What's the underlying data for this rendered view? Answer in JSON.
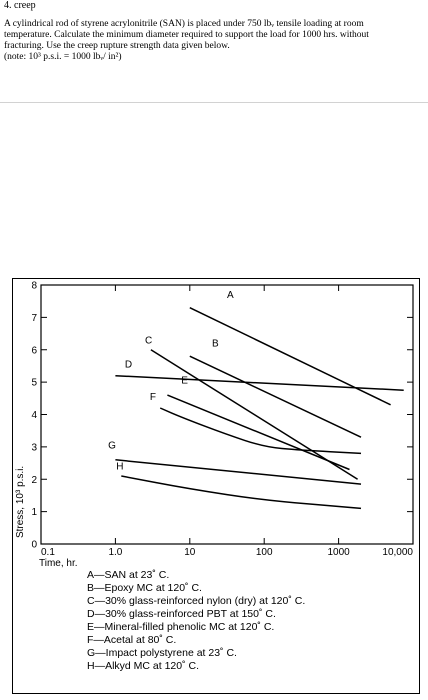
{
  "header": {
    "title": "4. creep",
    "lines": [
      "A cylindrical rod of styrene acrylonitrile (SAN) is placed under 750 lbᵥ tensile loading at room",
      "temperature.  Calculate the minimum diameter required to support the load for 1000 hrs. without",
      "fracturing.  Use the creep rupture strength data given below.",
      " (note: 10³ p.s.i. = 1000 lbᵥ/ in²)"
    ]
  },
  "chart_data": {
    "type": "line",
    "xscale": "log",
    "xlim": [
      0.1,
      10000
    ],
    "ylim": [
      0,
      8
    ],
    "xlabel": "Time, hr.",
    "ylabel": "Stress, 10³ p.s.i.",
    "xticks": [
      "0.1",
      "1.0",
      "10",
      "100",
      "1000",
      "10,000"
    ],
    "yticks": [
      "0",
      "1",
      "2",
      "3",
      "4",
      "5",
      "6",
      "7",
      "8"
    ],
    "series": [
      {
        "name": "A",
        "label": "A—SAN at 23˚ C.",
        "points": [
          [
            10,
            7.3
          ],
          [
            5000,
            4.3
          ]
        ]
      },
      {
        "name": "B",
        "label": "B—Epoxy MC at 120˚ C.",
        "points": [
          [
            10,
            5.8
          ],
          [
            2000,
            3.3
          ]
        ]
      },
      {
        "name": "C",
        "label": "C—30% glass-reinforced nylon (dry) at 120˚ C.",
        "points": [
          [
            3,
            6.0
          ],
          [
            1800,
            2.0
          ]
        ]
      },
      {
        "name": "D",
        "label": "D—30% glass-reinforced PBT at 150˚ C.",
        "points": [
          [
            1,
            5.2
          ],
          [
            7500,
            4.75
          ]
        ]
      },
      {
        "name": "E",
        "label": "E—Mineral-filled phenolic MC at 120˚ C.",
        "points": [
          [
            5,
            4.6
          ],
          [
            1400,
            2.3
          ]
        ]
      },
      {
        "name": "F",
        "label": "F—Acetal at 80˚ C.",
        "points": [
          [
            4,
            4.2
          ],
          [
            8,
            3.9
          ],
          [
            30,
            3.4
          ],
          [
            100,
            3.0
          ],
          [
            300,
            2.9
          ],
          [
            2000,
            2.8
          ]
        ]
      },
      {
        "name": "G",
        "label": "G—Impact polystyrene at 23˚ C.",
        "points": [
          [
            1,
            2.6
          ],
          [
            2000,
            1.85
          ]
        ]
      },
      {
        "name": "H",
        "label": "H—Alkyd MC at 120˚ C.",
        "points": [
          [
            1.2,
            2.1
          ],
          [
            10,
            1.7
          ],
          [
            100,
            1.35
          ],
          [
            2000,
            1.1
          ]
        ]
      }
    ],
    "series_labels": [
      {
        "name": "A",
        "x": 35,
        "y": 7.6
      },
      {
        "name": "B",
        "x": 22,
        "y": 6.1
      },
      {
        "name": "C",
        "x": 2.8,
        "y": 6.2
      },
      {
        "name": "D",
        "x": 1.5,
        "y": 5.45
      },
      {
        "name": "E",
        "x": 8.5,
        "y": 4.95
      },
      {
        "name": "F",
        "x": 3.2,
        "y": 4.45
      },
      {
        "name": "G",
        "x": 0.9,
        "y": 2.95
      },
      {
        "name": "H",
        "x": 1.15,
        "y": 2.3
      }
    ],
    "legend": [
      "A—SAN at 23˚ C.",
      "B—Epoxy MC at 120˚ C.",
      "C—30% glass-reinforced nylon (dry) at 120˚ C.",
      "D—30% glass-reinforced PBT at 150˚ C.",
      "E—Mineral-filled phenolic MC at 120˚ C.",
      "F—Acetal at 80˚ C.",
      "G—Impact polystyrene at 23˚ C.",
      "H—Alkyd MC at 120˚ C."
    ],
    "grid": false,
    "line_color": "#000000"
  }
}
